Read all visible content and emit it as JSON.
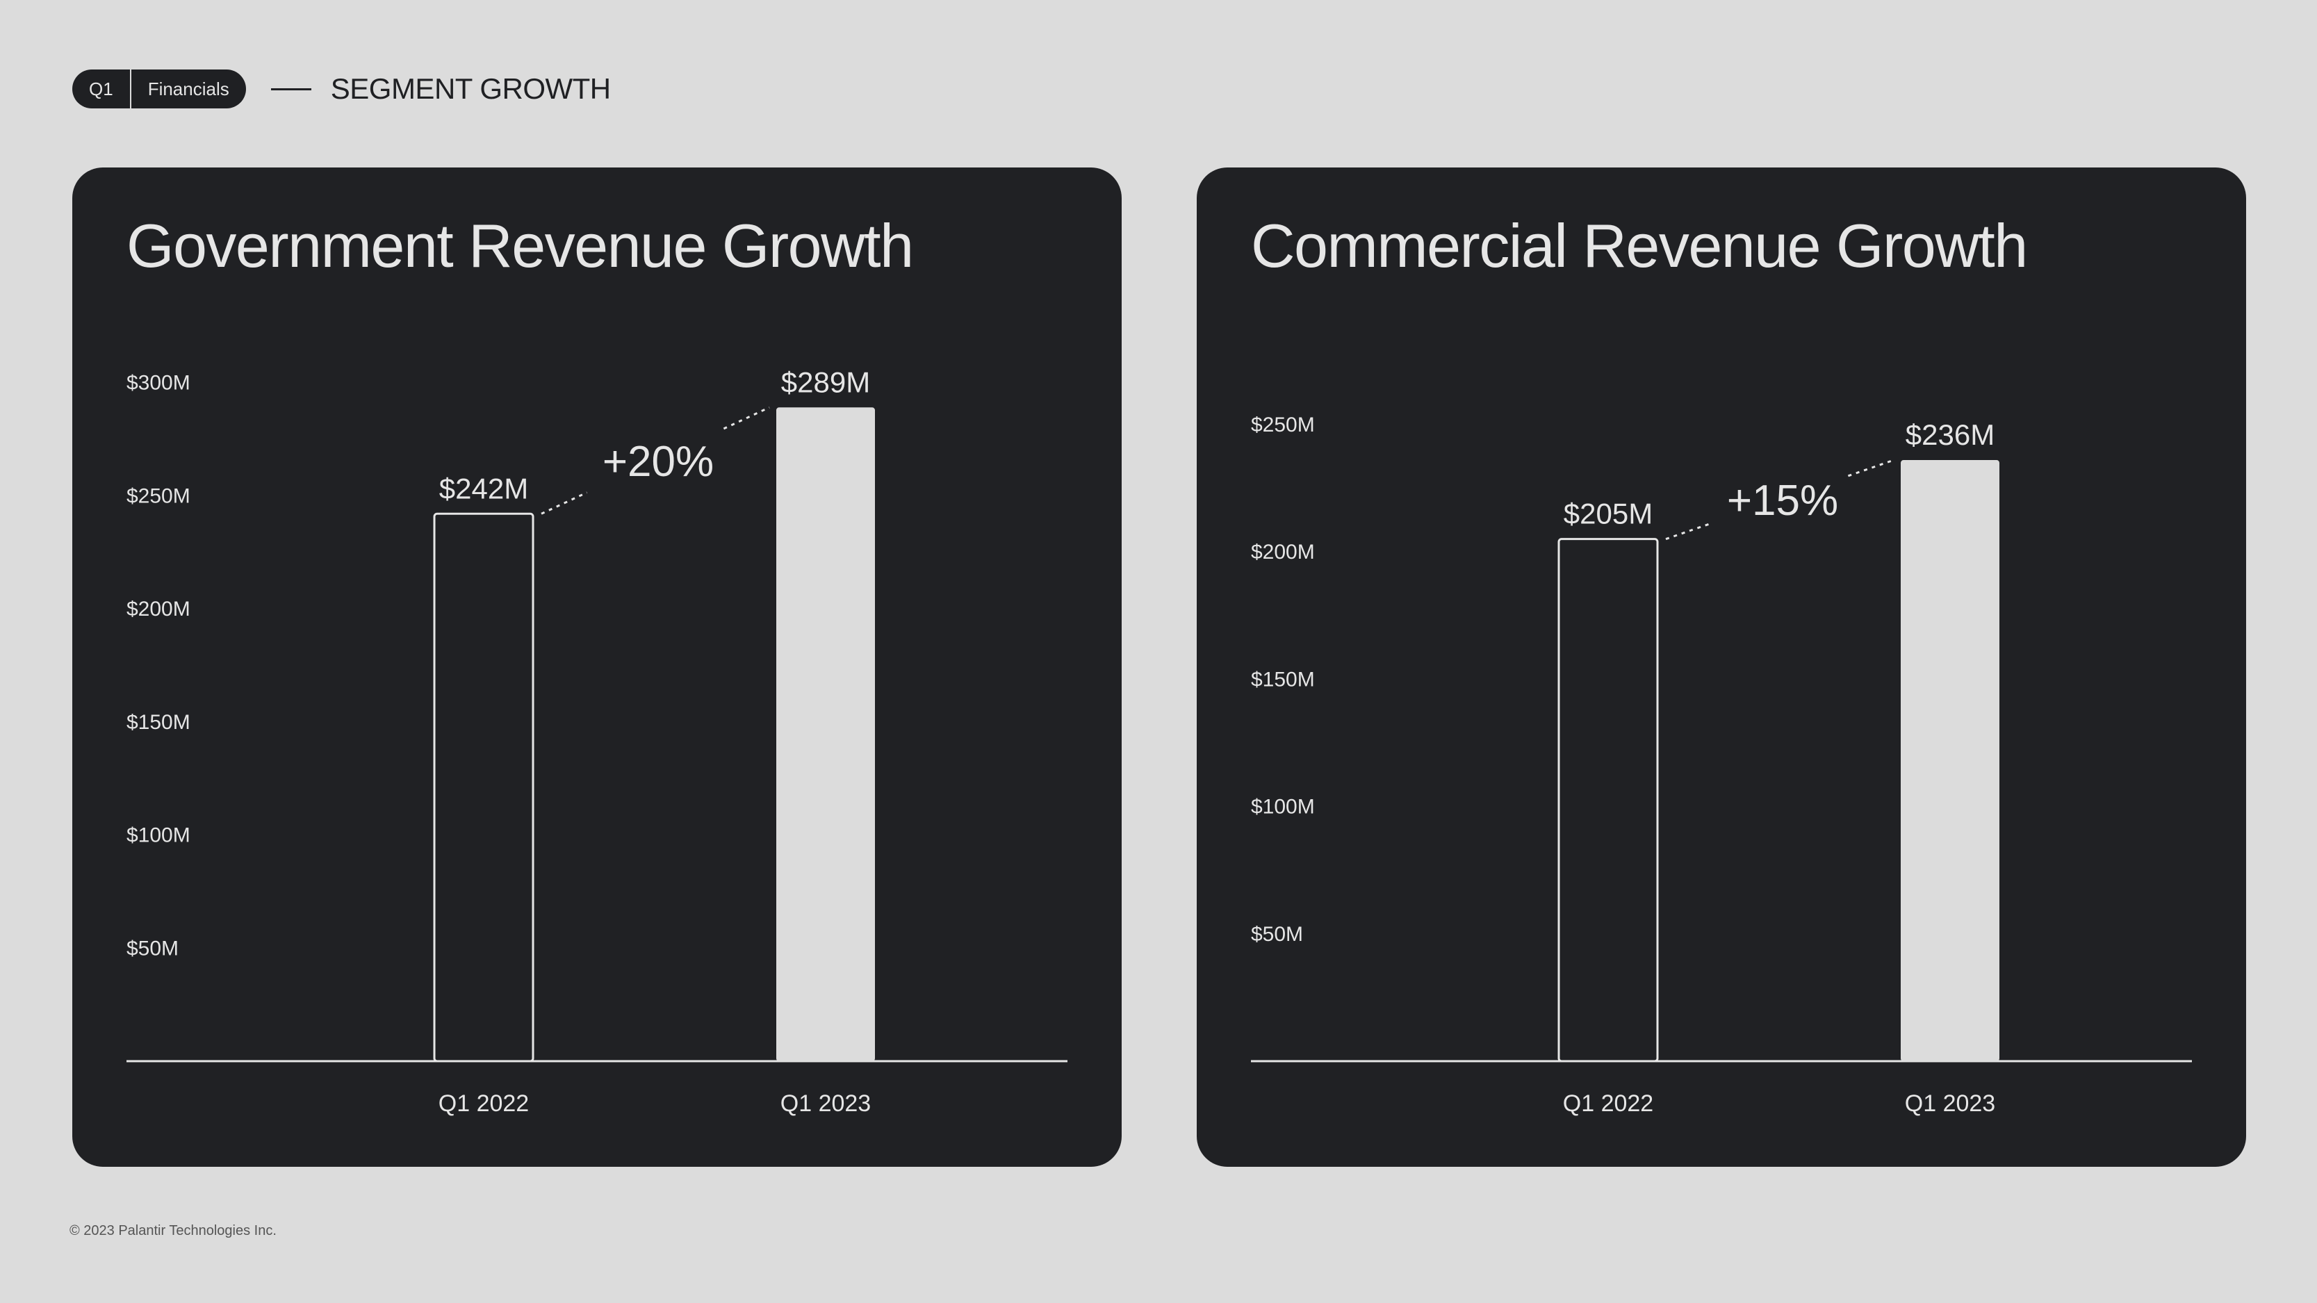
{
  "header": {
    "badge_left": "Q1",
    "badge_right": "Financials",
    "section_title": "SEGMENT GROWTH"
  },
  "footer": {
    "copyright": "© 2023 Palantir Technologies Inc."
  },
  "colors": {
    "background": "#dcdcdc",
    "card": "#202124",
    "text_light": "#e6e6e6",
    "bar_fill": "#dcdcdc"
  },
  "chart_data": [
    {
      "type": "bar",
      "title": "Government Revenue Growth",
      "categories": [
        "Q1 2022",
        "Q1 2023"
      ],
      "values": [
        242,
        289
      ],
      "value_labels": [
        "$242M",
        "$289M"
      ],
      "growth_label": "+20%",
      "yticks": [
        50,
        100,
        150,
        200,
        250,
        300
      ],
      "ytick_labels": [
        "$50M",
        "$100M",
        "$150M",
        "$200M",
        "$250M",
        "$300M"
      ],
      "ylim": [
        0,
        300
      ],
      "unit": "$M",
      "grid": false
    },
    {
      "type": "bar",
      "title": "Commercial Revenue Growth",
      "categories": [
        "Q1 2022",
        "Q1 2023"
      ],
      "values": [
        205,
        236
      ],
      "value_labels": [
        "$205M",
        "$236M"
      ],
      "growth_label": "+15%",
      "yticks": [
        50,
        100,
        150,
        200,
        250
      ],
      "ytick_labels": [
        "$50M",
        "$100M",
        "$150M",
        "$200M",
        "$250M"
      ],
      "ylim": [
        0,
        250
      ],
      "unit": "$M",
      "grid": false
    }
  ]
}
